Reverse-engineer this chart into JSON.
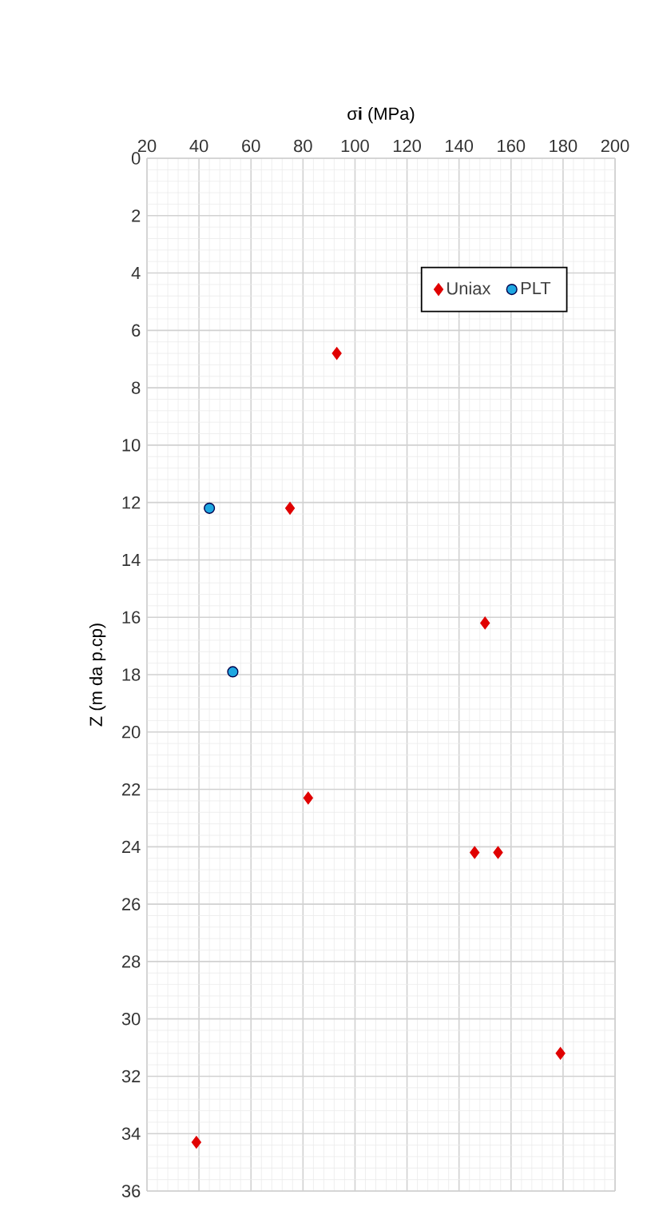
{
  "chart_data": {
    "type": "scatter",
    "xlabel": "σ**i** (MPa)",
    "ylabel": "Z (m da p.cp)",
    "xlim": [
      20,
      200
    ],
    "xticks": [
      20,
      40,
      60,
      80,
      100,
      120,
      140,
      160,
      180,
      200
    ],
    "ylim": [
      36,
      0
    ],
    "yticks": [
      0,
      2,
      4,
      6,
      8,
      10,
      12,
      14,
      16,
      18,
      20,
      22,
      24,
      26,
      28,
      30,
      32,
      34,
      36
    ],
    "grid": true,
    "legend": "top right",
    "series": [
      {
        "name": "Uniax",
        "color": "#e00000",
        "marker": "diamond",
        "x": [
          93,
          75,
          150,
          82,
          146,
          155,
          179,
          39
        ],
        "values": [
          6.8,
          12.2,
          16.2,
          22.3,
          24.2,
          24.2,
          31.2,
          34.3
        ]
      },
      {
        "name": "PLT",
        "color": "#1ea7e1",
        "marker": "circle",
        "x": [
          44,
          53
        ],
        "values": [
          12.2,
          17.9
        ]
      }
    ]
  }
}
